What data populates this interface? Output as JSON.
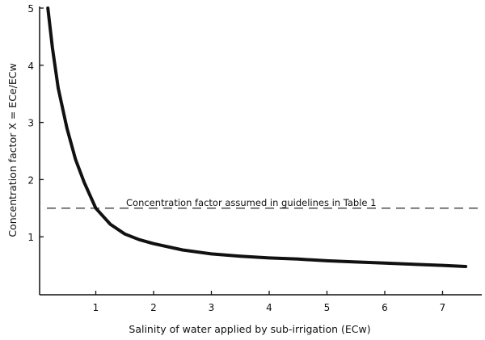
{
  "chart_data": {
    "type": "line",
    "title": "",
    "xlabel": "Salinity of water applied by sub-irrigation (ECw)",
    "ylabel": "Concentration factor X = ECe/ECw",
    "xlim": [
      0,
      7.6
    ],
    "ylim": [
      0,
      5
    ],
    "xticks": [
      "1",
      "2",
      "3",
      "4",
      "5",
      "6",
      "7"
    ],
    "yticks": [
      "1",
      "2",
      "3",
      "4",
      "5"
    ],
    "grid": false,
    "series": [
      {
        "x": [
          0.17,
          0.25,
          0.35,
          0.5,
          0.65,
          0.8,
          1.0,
          1.25,
          1.5,
          1.75,
          2,
          2.5,
          3,
          3.5,
          4,
          4.5,
          5,
          5.5,
          6,
          6.5,
          7,
          7.4
        ],
        "y": [
          5.0,
          4.3,
          3.6,
          2.9,
          2.35,
          1.95,
          1.5,
          1.22,
          1.05,
          0.95,
          0.88,
          0.77,
          0.7,
          0.66,
          0.63,
          0.61,
          0.58,
          0.56,
          0.54,
          0.52,
          0.5,
          0.48
        ],
        "color": "#111111"
      }
    ],
    "reference_line": {
      "y": 1.5,
      "label": "Concentration factor assumed in guidelines in Table 1",
      "style": "dashed"
    }
  }
}
